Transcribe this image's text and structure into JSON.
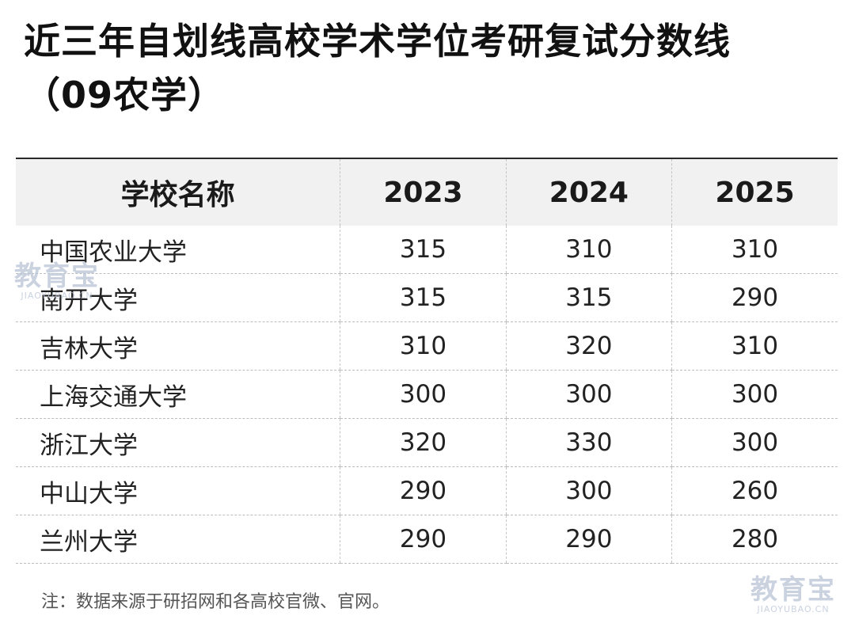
{
  "title": {
    "line1": "近三年自划线高校学术学位考研复试分数线",
    "line2": "（09农学）"
  },
  "table": {
    "headers": [
      "学校名称",
      "2023",
      "2024",
      "2025"
    ],
    "rows": [
      {
        "name": "中国农业大学",
        "y2023": "315",
        "y2024": "310",
        "y2025": "310"
      },
      {
        "name": "南开大学",
        "y2023": "315",
        "y2024": "315",
        "y2025": "290"
      },
      {
        "name": "吉林大学",
        "y2023": "310",
        "y2024": "320",
        "y2025": "310"
      },
      {
        "name": "上海交通大学",
        "y2023": "300",
        "y2024": "300",
        "y2025": "300"
      },
      {
        "name": "浙江大学",
        "y2023": "320",
        "y2024": "330",
        "y2025": "300"
      },
      {
        "name": "中山大学",
        "y2023": "290",
        "y2024": "300",
        "y2025": "260"
      },
      {
        "name": "兰州大学",
        "y2023": "290",
        "y2024": "290",
        "y2025": "280"
      }
    ]
  },
  "note": "注：数据来源于研招网和各高校官微、官网。",
  "watermark": {
    "logo": "教育宝",
    "url": "JIAOYUBAO.CN"
  }
}
